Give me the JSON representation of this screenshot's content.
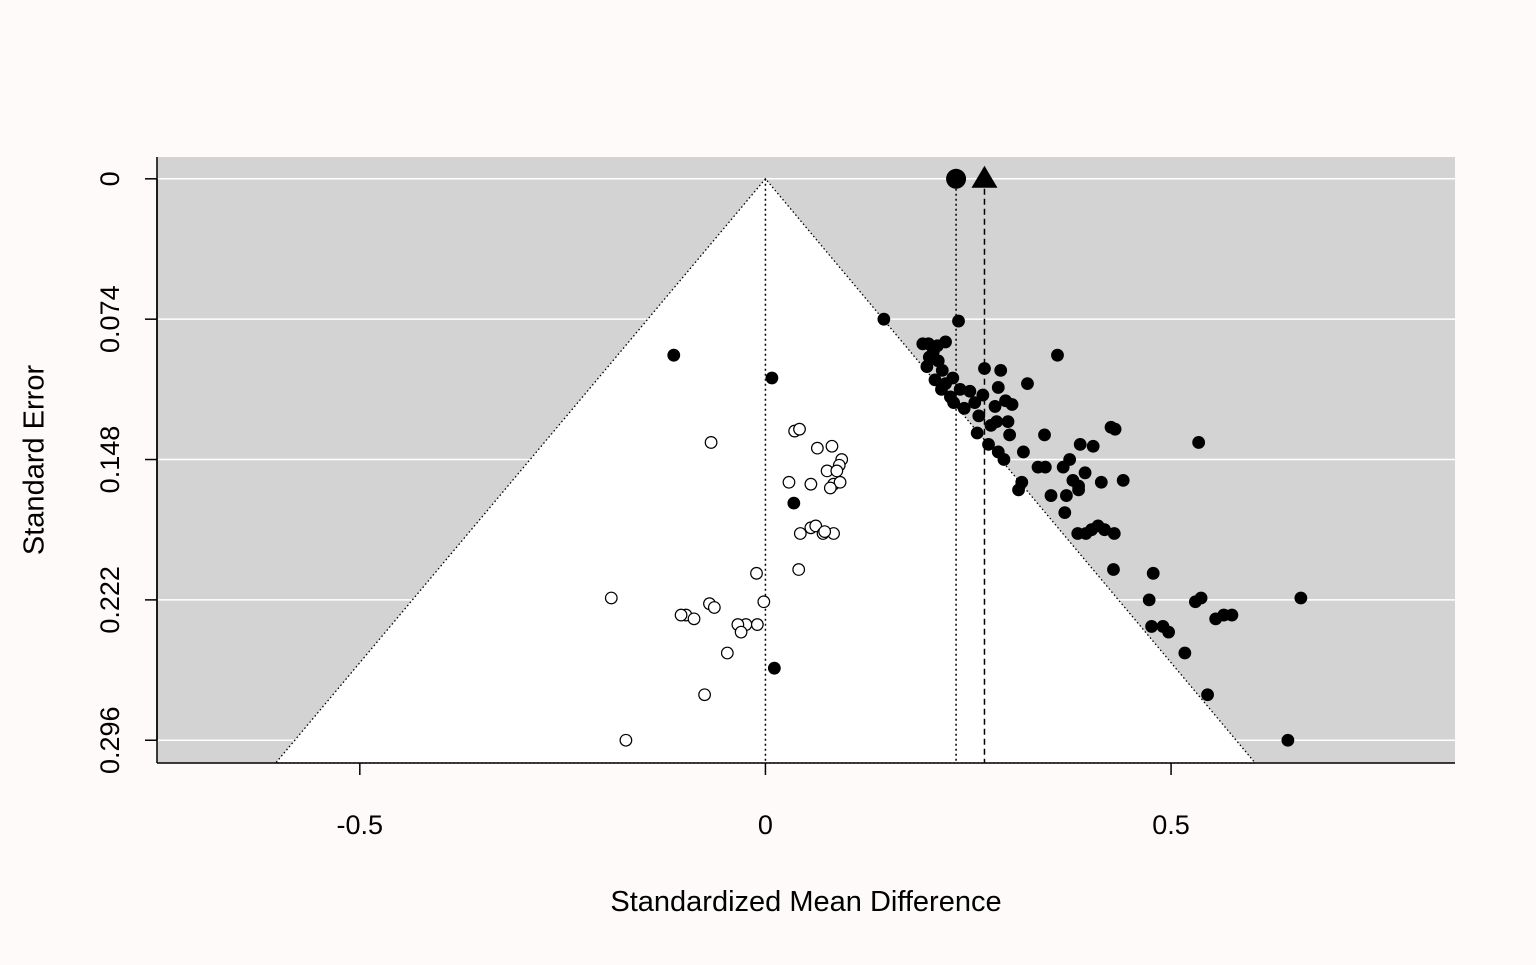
{
  "chart_data": {
    "type": "scatter",
    "subtype": "funnel-plot",
    "title": "",
    "xlabel": "Standardized Mean Difference",
    "ylabel": "Standard Error",
    "xlim": [
      -0.75,
      0.85
    ],
    "ylim": [
      0.308,
      -0.0115
    ],
    "y_reversed": true,
    "grid": "horizontal",
    "x_ticks": [
      -0.5,
      0,
      0.5
    ],
    "x_tick_labels": [
      "-0.5",
      "0",
      "0.5"
    ],
    "y_ticks": [
      0,
      0.074,
      0.148,
      0.222,
      0.296
    ],
    "y_tick_labels": [
      "0",
      "0.074",
      "0.148",
      "0.222",
      "0.296"
    ],
    "colors": {
      "plot_background": "#d3d3d3",
      "funnel_fill": "#ffffff",
      "grid": "#ffffff",
      "points": "#000000"
    },
    "funnel": {
      "apex_x": 0,
      "apex_y": 0,
      "slope": 1.96
    },
    "reference_lines": [
      {
        "name": "null",
        "x": 0,
        "style": "dotted"
      },
      {
        "name": "original-estimate",
        "x": 0.235,
        "style": "dotted",
        "marker": "circle"
      },
      {
        "name": "adjusted-estimate",
        "x": 0.27,
        "style": "dashed",
        "marker": "triangle"
      }
    ],
    "series": [
      {
        "filled": true,
        "points": [
          [
            0.146,
            0.074
          ],
          [
            0.194,
            0.087
          ],
          [
            0.202,
            0.094
          ],
          [
            0.212,
            0.088
          ],
          [
            0.222,
            0.086
          ],
          [
            0.238,
            0.075
          ],
          [
            0.201,
            0.087
          ],
          [
            0.207,
            0.091
          ],
          [
            0.213,
            0.096
          ],
          [
            0.199,
            0.099
          ],
          [
            0.218,
            0.101
          ],
          [
            0.209,
            0.106
          ],
          [
            0.222,
            0.108
          ],
          [
            0.231,
            0.105
          ],
          [
            0.217,
            0.111
          ],
          [
            0.228,
            0.115
          ],
          [
            0.24,
            0.111
          ],
          [
            0.232,
            0.118
          ],
          [
            0.245,
            0.121
          ],
          [
            0.258,
            0.118
          ],
          [
            0.252,
            0.112
          ],
          [
            0.268,
            0.114
          ],
          [
            0.27,
            0.1
          ],
          [
            0.283,
            0.12
          ],
          [
            0.296,
            0.117
          ],
          [
            0.29,
            0.101
          ],
          [
            0.287,
            0.11
          ],
          [
            0.304,
            0.119
          ],
          [
            0.323,
            0.108
          ],
          [
            0.36,
            0.093
          ],
          [
            0.263,
            0.125
          ],
          [
            0.278,
            0.13
          ],
          [
            0.285,
            0.128
          ],
          [
            0.299,
            0.128
          ],
          [
            0.261,
            0.134
          ],
          [
            0.275,
            0.14
          ],
          [
            0.301,
            0.135
          ],
          [
            0.287,
            0.144
          ],
          [
            0.294,
            0.148
          ],
          [
            0.318,
            0.144
          ],
          [
            0.344,
            0.135
          ],
          [
            0.375,
            0.148
          ],
          [
            0.388,
            0.14
          ],
          [
            0.404,
            0.141
          ],
          [
            0.431,
            0.132
          ],
          [
            0.426,
            0.131
          ],
          [
            0.534,
            0.139
          ],
          [
            0.336,
            0.152
          ],
          [
            0.345,
            0.152
          ],
          [
            0.367,
            0.152
          ],
          [
            0.394,
            0.155
          ],
          [
            0.379,
            0.159
          ],
          [
            0.386,
            0.162
          ],
          [
            0.414,
            0.16
          ],
          [
            0.441,
            0.159
          ],
          [
            0.316,
            0.16
          ],
          [
            0.312,
            0.164
          ],
          [
            0.352,
            0.167
          ],
          [
            0.371,
            0.167
          ],
          [
            0.386,
            0.164
          ],
          [
            0.369,
            0.176
          ],
          [
            0.385,
            0.187
          ],
          [
            0.395,
            0.187
          ],
          [
            0.402,
            0.185
          ],
          [
            0.41,
            0.183
          ],
          [
            0.418,
            0.185
          ],
          [
            0.43,
            0.187
          ],
          [
            0.429,
            0.206
          ],
          [
            0.478,
            0.208
          ],
          [
            0.473,
            0.222
          ],
          [
            0.476,
            0.236
          ],
          [
            0.49,
            0.236
          ],
          [
            0.497,
            0.239
          ],
          [
            0.517,
            0.25
          ],
          [
            0.53,
            0.223
          ],
          [
            0.537,
            0.221
          ],
          [
            0.555,
            0.232
          ],
          [
            0.565,
            0.23
          ],
          [
            0.575,
            0.23
          ],
          [
            0.66,
            0.221
          ],
          [
            0.545,
            0.272
          ],
          [
            0.644,
            0.296
          ],
          [
            -0.113,
            0.093
          ],
          [
            0.008,
            0.105
          ],
          [
            0.035,
            0.171
          ],
          [
            0.011,
            0.258
          ]
        ]
      },
      {
        "filled": false,
        "points": [
          [
            -0.067,
            0.139
          ],
          [
            0.036,
            0.133
          ],
          [
            0.042,
            0.132
          ],
          [
            0.064,
            0.142
          ],
          [
            0.082,
            0.141
          ],
          [
            0.094,
            0.148
          ],
          [
            0.091,
            0.151
          ],
          [
            0.076,
            0.154
          ],
          [
            0.088,
            0.154
          ],
          [
            0.029,
            0.16
          ],
          [
            0.056,
            0.161
          ],
          [
            0.084,
            0.161
          ],
          [
            0.092,
            0.16
          ],
          [
            0.08,
            0.163
          ],
          [
            0.043,
            0.187
          ],
          [
            0.056,
            0.184
          ],
          [
            0.062,
            0.183
          ],
          [
            0.071,
            0.187
          ],
          [
            0.084,
            0.187
          ],
          [
            0.073,
            0.186
          ],
          [
            0.041,
            0.206
          ],
          [
            -0.011,
            0.208
          ],
          [
            -0.19,
            0.221
          ],
          [
            -0.002,
            0.223
          ],
          [
            -0.069,
            0.224
          ],
          [
            -0.063,
            0.226
          ],
          [
            -0.098,
            0.23
          ],
          [
            -0.104,
            0.23
          ],
          [
            -0.088,
            0.232
          ],
          [
            -0.024,
            0.235
          ],
          [
            -0.034,
            0.235
          ],
          [
            -0.01,
            0.235
          ],
          [
            -0.03,
            0.239
          ],
          [
            -0.047,
            0.25
          ],
          [
            -0.075,
            0.272
          ],
          [
            -0.172,
            0.296
          ]
        ]
      }
    ]
  }
}
